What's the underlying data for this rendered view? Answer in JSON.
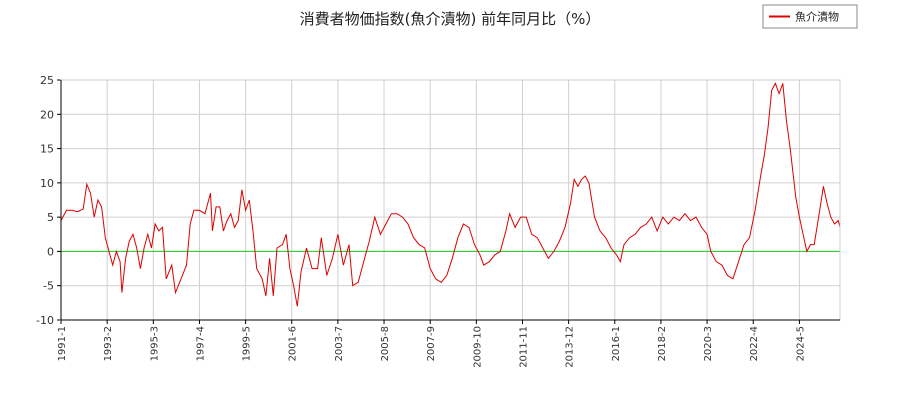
{
  "chart_data": {
    "type": "line",
    "title": "消費者物価指数(魚介漬物) 前年同月比（%）",
    "xlabel": "",
    "ylabel": "",
    "ylim": [
      -10,
      25
    ],
    "yticks": [
      -10,
      -5,
      0,
      5,
      10,
      15,
      20,
      25
    ],
    "xlim": [
      "1991-1",
      "2026-3"
    ],
    "xtick_labels": [
      "1991-1",
      "1993-2",
      "1995-3",
      "1997-4",
      "1999-5",
      "2001-6",
      "2003-7",
      "2005-8",
      "2007-9",
      "2009-10",
      "2011-11",
      "2013-12",
      "2016-1",
      "2018-2",
      "2020-3",
      "2022-4",
      "2024-5"
    ],
    "grid": true,
    "legend": {
      "position": "top-right",
      "entries": [
        "魚介漬物"
      ]
    },
    "zero_line": {
      "y": 0,
      "color": "#22cc22"
    },
    "colors": {
      "series": "#dd0000",
      "zero_line": "#22cc22",
      "grid": "#d0d0d0",
      "axis": "#000000"
    },
    "series": [
      {
        "name": "魚介漬物",
        "points": [
          [
            "1991-1",
            4.5
          ],
          [
            "1991-4",
            6
          ],
          [
            "1991-7",
            6
          ],
          [
            "1991-10",
            5.8
          ],
          [
            "1992-1",
            6.2
          ],
          [
            "1992-3",
            9.8
          ],
          [
            "1992-5",
            8.5
          ],
          [
            "1992-7",
            5
          ],
          [
            "1992-9",
            7.5
          ],
          [
            "1992-11",
            6.5
          ],
          [
            "1993-1",
            2
          ],
          [
            "1993-3",
            0
          ],
          [
            "1993-5",
            -2
          ],
          [
            "1993-7",
            0
          ],
          [
            "1993-9",
            -1.5
          ],
          [
            "1993-10",
            -6
          ],
          [
            "1993-12",
            -1
          ],
          [
            "1994-2",
            1.5
          ],
          [
            "1994-4",
            2.5
          ],
          [
            "1994-6",
            0.5
          ],
          [
            "1994-8",
            -2.5
          ],
          [
            "1994-10",
            0.5
          ],
          [
            "1994-12",
            2.5
          ],
          [
            "1995-2",
            0.5
          ],
          [
            "1995-4",
            4
          ],
          [
            "1995-6",
            3
          ],
          [
            "1995-8",
            3.5
          ],
          [
            "1995-10",
            -4
          ],
          [
            "1996-1",
            -2
          ],
          [
            "1996-3",
            -6
          ],
          [
            "1996-6",
            -4
          ],
          [
            "1996-9",
            -2
          ],
          [
            "1996-11",
            4
          ],
          [
            "1997-1",
            6
          ],
          [
            "1997-4",
            6
          ],
          [
            "1997-7",
            5.5
          ],
          [
            "1997-10",
            8.5
          ],
          [
            "1997-11",
            3
          ],
          [
            "1998-1",
            6.5
          ],
          [
            "1998-3",
            6.5
          ],
          [
            "1998-5",
            3
          ],
          [
            "1998-7",
            4.5
          ],
          [
            "1998-9",
            5.5
          ],
          [
            "1998-11",
            3.5
          ],
          [
            "1999-1",
            4.5
          ],
          [
            "1999-3",
            9
          ],
          [
            "1999-5",
            6
          ],
          [
            "1999-7",
            7.5
          ],
          [
            "1999-9",
            3
          ],
          [
            "1999-11",
            -2.5
          ],
          [
            "2000-2",
            -4
          ],
          [
            "2000-4",
            -6.5
          ],
          [
            "2000-6",
            -1
          ],
          [
            "2000-8",
            -6.5
          ],
          [
            "2000-10",
            0.5
          ],
          [
            "2001-1",
            1
          ],
          [
            "2001-3",
            2.5
          ],
          [
            "2001-5",
            -2.5
          ],
          [
            "2001-7",
            -5
          ],
          [
            "2001-9",
            -8
          ],
          [
            "2001-11",
            -3
          ],
          [
            "2002-2",
            0.5
          ],
          [
            "2002-5",
            -2.5
          ],
          [
            "2002-8",
            -2.5
          ],
          [
            "2002-10",
            2
          ],
          [
            "2003-1",
            -3.5
          ],
          [
            "2003-4",
            -1
          ],
          [
            "2003-7",
            2.5
          ],
          [
            "2003-10",
            -2
          ],
          [
            "2004-1",
            1
          ],
          [
            "2004-3",
            -5
          ],
          [
            "2004-6",
            -4.5
          ],
          [
            "2004-9",
            -1.5
          ],
          [
            "2004-12",
            1.5
          ],
          [
            "2005-3",
            5
          ],
          [
            "2005-6",
            2.5
          ],
          [
            "2005-9",
            4
          ],
          [
            "2005-12",
            5.5
          ],
          [
            "2006-3",
            5.5
          ],
          [
            "2006-6",
            5
          ],
          [
            "2006-9",
            4
          ],
          [
            "2006-12",
            2
          ],
          [
            "2007-3",
            1
          ],
          [
            "2007-6",
            0.5
          ],
          [
            "2007-9",
            -2.5
          ],
          [
            "2007-12",
            -4
          ],
          [
            "2008-3",
            -4.5
          ],
          [
            "2008-6",
            -3.5
          ],
          [
            "2008-9",
            -1
          ],
          [
            "2008-12",
            2
          ],
          [
            "2009-3",
            4
          ],
          [
            "2009-6",
            3.5
          ],
          [
            "2009-9",
            1
          ],
          [
            "2009-12",
            -0.5
          ],
          [
            "2010-2",
            -2
          ],
          [
            "2010-5",
            -1.5
          ],
          [
            "2010-8",
            -0.5
          ],
          [
            "2010-11",
            0
          ],
          [
            "2011-2",
            3
          ],
          [
            "2011-4",
            5.5
          ],
          [
            "2011-7",
            3.5
          ],
          [
            "2011-10",
            5
          ],
          [
            "2012-1",
            5
          ],
          [
            "2012-4",
            2.5
          ],
          [
            "2012-7",
            2
          ],
          [
            "2012-10",
            0.5
          ],
          [
            "2013-1",
            -1
          ],
          [
            "2013-4",
            0
          ],
          [
            "2013-7",
            1.5
          ],
          [
            "2013-10",
            3.5
          ],
          [
            "2014-1",
            7
          ],
          [
            "2014-3",
            10.5
          ],
          [
            "2014-5",
            9.5
          ],
          [
            "2014-7",
            10.5
          ],
          [
            "2014-9",
            11
          ],
          [
            "2014-11",
            10
          ],
          [
            "2015-2",
            5
          ],
          [
            "2015-5",
            3
          ],
          [
            "2015-8",
            2
          ],
          [
            "2015-11",
            0.5
          ],
          [
            "2016-2",
            -0.5
          ],
          [
            "2016-4",
            -1.5
          ],
          [
            "2016-6",
            1
          ],
          [
            "2016-9",
            2
          ],
          [
            "2016-12",
            2.5
          ],
          [
            "2017-3",
            3.5
          ],
          [
            "2017-6",
            4
          ],
          [
            "2017-9",
            5
          ],
          [
            "2017-12",
            3
          ],
          [
            "2018-3",
            5
          ],
          [
            "2018-6",
            4
          ],
          [
            "2018-9",
            5
          ],
          [
            "2018-12",
            4.5
          ],
          [
            "2019-3",
            5.5
          ],
          [
            "2019-6",
            4.5
          ],
          [
            "2019-9",
            5
          ],
          [
            "2019-12",
            3.5
          ],
          [
            "2020-3",
            2.5
          ],
          [
            "2020-5",
            0
          ],
          [
            "2020-8",
            -1.5
          ],
          [
            "2020-11",
            -2
          ],
          [
            "2021-2",
            -3.5
          ],
          [
            "2021-5",
            -4
          ],
          [
            "2021-8",
            -1.5
          ],
          [
            "2021-11",
            1
          ],
          [
            "2022-2",
            2
          ],
          [
            "2022-5",
            6
          ],
          [
            "2022-8",
            11
          ],
          [
            "2022-10",
            14
          ],
          [
            "2022-12",
            18
          ],
          [
            "2023-2",
            23.5
          ],
          [
            "2023-4",
            24.5
          ],
          [
            "2023-6",
            23
          ],
          [
            "2023-8",
            24.5
          ],
          [
            "2023-10",
            19
          ],
          [
            "2023-12",
            15
          ],
          [
            "2024-3",
            8
          ],
          [
            "2024-5",
            5
          ],
          [
            "2024-7",
            2.5
          ],
          [
            "2024-9",
            0
          ],
          [
            "2024-11",
            1
          ],
          [
            "2025-1",
            1
          ],
          [
            "2025-4",
            6
          ],
          [
            "2025-6",
            9.5
          ],
          [
            "2025-8",
            7
          ],
          [
            "2025-10",
            5
          ],
          [
            "2025-12",
            4
          ],
          [
            "2026-2",
            4.5
          ],
          [
            "2026-3",
            3.5
          ]
        ]
      }
    ]
  }
}
